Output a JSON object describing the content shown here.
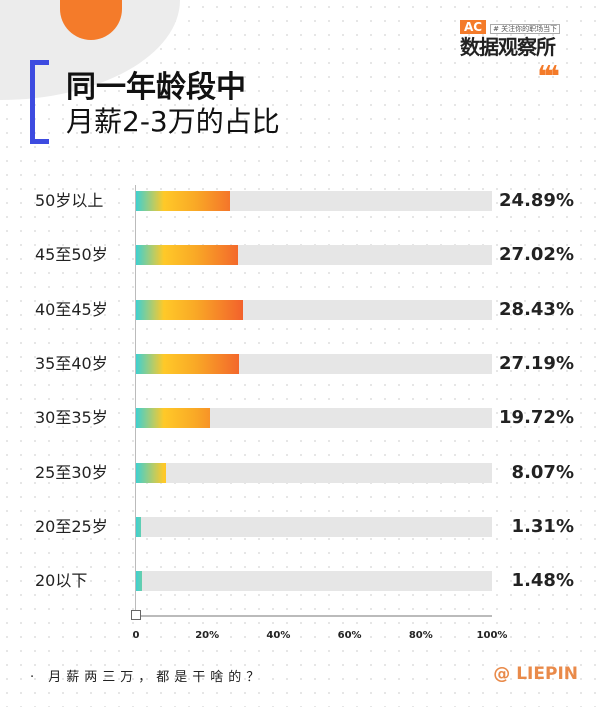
{
  "header": {
    "title_line1": "同一年龄段中",
    "title_line2": "月薪2-3万的占比"
  },
  "logo": {
    "badge": "AC",
    "tagline": "# 关注你的职场当下",
    "name": "数据观察所"
  },
  "decoration": {
    "quotes": "❛❛❛"
  },
  "footer": {
    "caption": "· 月薪两三万，都是干啥的？",
    "brand": "@ LIEPIN"
  },
  "colors": {
    "accent_orange": "#f47b2a",
    "bracket_blue": "#3d4be0",
    "gradient": [
      "#3fd0d0",
      "#ffc928",
      "#f25d2c"
    ],
    "track": "#e6e6e6"
  },
  "chart_data": {
    "type": "bar",
    "orientation": "horizontal",
    "categories": [
      "50岁以上",
      "45至50岁",
      "40至45岁",
      "35至40岁",
      "30至35岁",
      "25至30岁",
      "20至25岁",
      "20以下"
    ],
    "values": [
      24.89,
      27.02,
      28.43,
      27.19,
      19.72,
      8.07,
      1.31,
      1.48
    ],
    "value_labels": [
      "24.89%",
      "27.02%",
      "28.43%",
      "27.19%",
      "19.72%",
      "8.07%",
      "1.31%",
      "1.48%"
    ],
    "xlim": [
      0,
      100
    ],
    "x_ticks": [
      "0",
      "20%",
      "40%",
      "60%",
      "80%",
      "100%"
    ],
    "title": "同一年龄段中 月薪2-3万的占比"
  }
}
